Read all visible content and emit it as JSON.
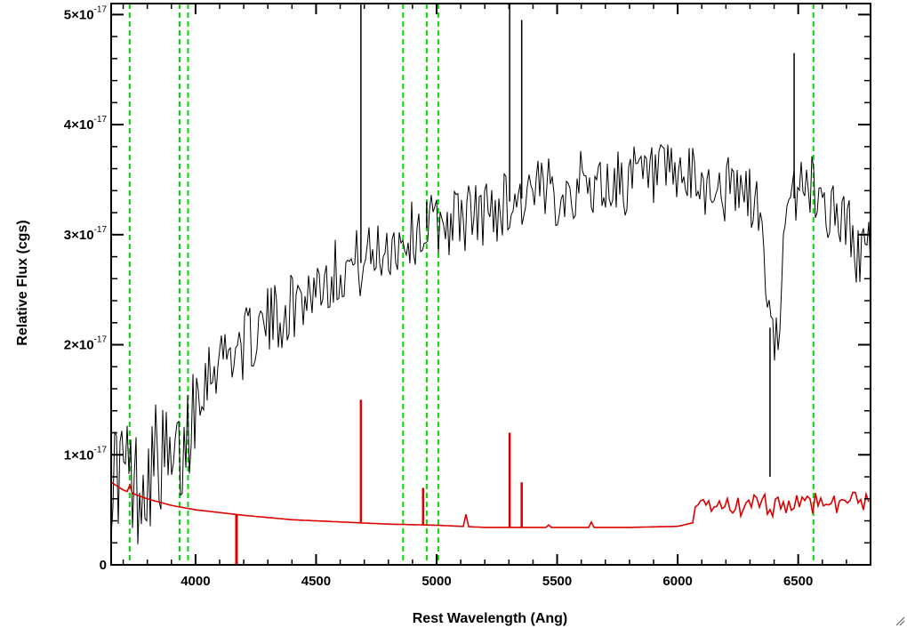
{
  "chart_data": {
    "type": "line",
    "title": "",
    "xlabel": "Rest Wavelength (Ang)",
    "ylabel": "Relative Flux (cgs)",
    "xlim": [
      3650,
      6800
    ],
    "ylim": [
      0,
      5.1e-17
    ],
    "x_ticks": [
      4000,
      4500,
      5000,
      5500,
      6000,
      6500
    ],
    "x_tick_labels": [
      "4000",
      "4500",
      "5000",
      "5500",
      "6000",
      "6500"
    ],
    "y_ticks": [
      0,
      1e-17,
      2e-17,
      3e-17,
      4e-17,
      5e-17
    ],
    "y_tick_labels": [
      {
        "mantissa": "0",
        "exponent": ""
      },
      {
        "mantissa": "1×10",
        "exponent": "-17"
      },
      {
        "mantissa": "2×10",
        "exponent": "-17"
      },
      {
        "mantissa": "3×10",
        "exponent": "-17"
      },
      {
        "mantissa": "4×10",
        "exponent": "-17"
      },
      {
        "mantissa": "5×10",
        "exponent": "-17"
      }
    ],
    "grid": false,
    "legend": "none",
    "vertical_lines": {
      "x": [
        3727,
        3934,
        3969,
        4861,
        4959,
        5007,
        6563
      ],
      "color": "#00dd00",
      "style": "dashed"
    },
    "series": [
      {
        "color": "#000000",
        "style": "noisy",
        "x": [
          3650,
          3700,
          3750,
          3800,
          3850,
          3900,
          3950,
          4000,
          4100,
          4200,
          4300,
          4400,
          4500,
          4600,
          4700,
          4800,
          4900,
          5000,
          5100,
          5200,
          5300,
          5400,
          5500,
          5600,
          5700,
          5800,
          5900,
          6000,
          6100,
          6200,
          6300,
          6350,
          6380,
          6400,
          6450,
          6500,
          6550,
          6600,
          6650,
          6700,
          6750,
          6800
        ],
        "y": [
          8e-18,
          9e-18,
          7e-18,
          8.5e-18,
          1e-17,
          8e-18,
          1e-17,
          1.6e-17,
          1.9e-17,
          2e-17,
          2.2e-17,
          2.35e-17,
          2.55e-17,
          2.7e-17,
          2.75e-17,
          2.9e-17,
          3e-17,
          3.1e-17,
          3.15e-17,
          3.2e-17,
          3.3e-17,
          3.35e-17,
          3.4e-17,
          3.45e-17,
          3.45e-17,
          3.5e-17,
          3.5e-17,
          3.5e-17,
          3.45e-17,
          3.4e-17,
          3.35e-17,
          3.1e-17,
          2.2e-17,
          1.9e-17,
          3e-17,
          3.5e-17,
          3.45e-17,
          3.3e-17,
          3.2e-17,
          3.1e-17,
          2.8e-17,
          2.9e-17
        ]
      },
      {
        "color": "#dd0000",
        "style": "smooth",
        "x": [
          3650,
          3700,
          3800,
          3900,
          4000,
          4200,
          4400,
          4600,
          4800,
          5000,
          5200,
          5400,
          5600,
          5800,
          6000,
          6100,
          6300,
          6500,
          6650,
          6800
        ],
        "y": [
          7.5e-18,
          6.8e-18,
          6e-18,
          5.4e-18,
          5e-18,
          4.5e-18,
          4.1e-18,
          3.9e-18,
          3.7e-18,
          3.6e-18,
          3.4e-18,
          3.4e-18,
          3.4e-18,
          3.4e-18,
          3.5e-18,
          4e-18,
          4.2e-18,
          4.5e-18,
          4.7e-18,
          4.6e-18
        ]
      }
    ],
    "emission_spikes": [
      {
        "x": 4686,
        "peak": 5.1e-17,
        "series": 0
      },
      {
        "x": 4959,
        "peak": 3.3e-17,
        "series": 0
      },
      {
        "x": 5303,
        "peak": 5.1e-17,
        "series": 0
      },
      {
        "x": 5353,
        "peak": 4.95e-17,
        "series": 0
      },
      {
        "x": 6483,
        "peak": 4.65e-17,
        "series": 0
      },
      {
        "x": 4686,
        "peak": 1.5e-17,
        "series": 1
      },
      {
        "x": 5303,
        "peak": 1.2e-17,
        "series": 1
      },
      {
        "x": 5353,
        "peak": 7.5e-18,
        "series": 1
      },
      {
        "x": 4944,
        "peak": 7e-18,
        "series": 1
      }
    ],
    "absorption_spikes": [
      {
        "x": 4170,
        "trough": -5e-19,
        "series": 1
      },
      {
        "x": 6383,
        "trough": 8e-18,
        "series": 0
      }
    ]
  }
}
